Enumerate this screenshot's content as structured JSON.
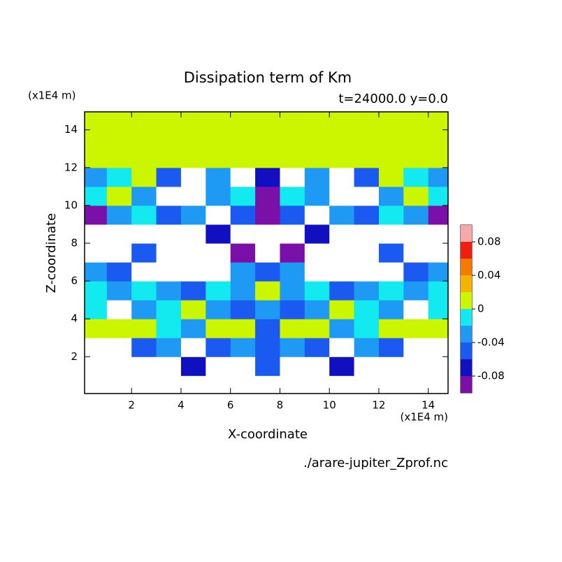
{
  "chart_data": {
    "type": "contour",
    "title": "Dissipation term of Km",
    "subtitle": "t=24000.0 y=0.0",
    "x_label": "X-coordinate",
    "y_label": "Z-coordinate",
    "x_unit": "(x1E4 m)",
    "y_unit": "(x1E4 m)",
    "file": "./arare-jupiter_Zprof.nc",
    "xlim": [
      0.1,
      14.8
    ],
    "ylim": [
      0.05,
      14.95
    ],
    "xticks": [
      2,
      4,
      6,
      8,
      10,
      12,
      14
    ],
    "yticks": [
      2,
      4,
      6,
      8,
      10,
      12,
      14
    ],
    "x": [
      0.5,
      1.5,
      2.5,
      3.5,
      4.5,
      5.5,
      6.5,
      7.5,
      8.5,
      9.5,
      10.5,
      11.5,
      12.5,
      13.5,
      14.5
    ],
    "z": [
      0.5,
      1.5,
      2.5,
      3.5,
      4.5,
      5.5,
      6.5,
      7.5,
      8.5,
      9.5,
      10.5,
      11.5,
      12.5,
      13.5,
      14.5
    ],
    "values": [
      [
        -0.12,
        -0.12,
        -0.12,
        -0.12,
        -0.12,
        -0.12,
        -0.12,
        -0.12,
        -0.12,
        -0.12,
        -0.12,
        -0.12,
        -0.12,
        -0.12,
        -0.12
      ],
      [
        -0.12,
        -0.12,
        -0.12,
        -0.12,
        -0.07,
        -0.12,
        -0.12,
        -0.05,
        -0.12,
        -0.12,
        -0.07,
        -0.12,
        -0.12,
        -0.12,
        -0.12
      ],
      [
        -0.12,
        -0.12,
        -0.05,
        -0.03,
        -0.12,
        -0.05,
        -0.03,
        -0.05,
        -0.03,
        -0.05,
        -0.12,
        -0.03,
        -0.05,
        -0.12,
        -0.12
      ],
      [
        0.01,
        0.01,
        0.01,
        -0.01,
        -0.03,
        0.01,
        0.01,
        -0.05,
        0.01,
        0.01,
        -0.03,
        -0.01,
        0.01,
        0.01,
        0.01
      ],
      [
        -0.01,
        -0.12,
        -0.03,
        -0.01,
        0.01,
        -0.03,
        -0.05,
        -0.03,
        -0.05,
        -0.03,
        0.01,
        -0.01,
        -0.03,
        -0.12,
        -0.01
      ],
      [
        -0.01,
        -0.03,
        -0.01,
        -0.03,
        -0.05,
        -0.01,
        -0.03,
        0.01,
        -0.03,
        -0.01,
        -0.05,
        -0.03,
        -0.01,
        -0.03,
        -0.01
      ],
      [
        -0.03,
        -0.05,
        -0.12,
        -0.12,
        -0.12,
        -0.12,
        -0.03,
        -0.05,
        -0.03,
        -0.12,
        -0.12,
        -0.12,
        -0.12,
        -0.05,
        -0.03
      ],
      [
        -0.12,
        -0.12,
        -0.05,
        -0.12,
        -0.12,
        -0.12,
        -0.09,
        -0.12,
        -0.09,
        -0.12,
        -0.12,
        -0.12,
        -0.05,
        -0.12,
        -0.12
      ],
      [
        -0.12,
        -0.12,
        -0.12,
        -0.12,
        -0.12,
        -0.07,
        -0.12,
        -0.12,
        -0.12,
        -0.07,
        -0.12,
        -0.12,
        -0.12,
        -0.12,
        -0.12
      ],
      [
        -0.09,
        -0.03,
        -0.01,
        -0.05,
        -0.03,
        -0.12,
        -0.05,
        -0.09,
        -0.05,
        -0.12,
        -0.03,
        -0.05,
        -0.01,
        -0.03,
        -0.09
      ],
      [
        -0.01,
        0.01,
        -0.03,
        -0.12,
        -0.12,
        -0.03,
        -0.01,
        -0.09,
        -0.01,
        -0.03,
        -0.12,
        -0.12,
        -0.03,
        0.01,
        -0.01
      ],
      [
        -0.03,
        -0.01,
        0.01,
        -0.05,
        -0.12,
        -0.03,
        -0.12,
        -0.07,
        -0.12,
        -0.03,
        -0.12,
        -0.05,
        0.01,
        -0.01,
        -0.03
      ],
      [
        0.01,
        0.01,
        0.01,
        0.01,
        0.01,
        0.01,
        0.01,
        0.01,
        0.01,
        0.01,
        0.01,
        0.01,
        0.01,
        0.01,
        0.01
      ],
      [
        0.01,
        0.01,
        0.01,
        0.01,
        0.01,
        0.01,
        0.01,
        0.01,
        0.01,
        0.01,
        0.01,
        0.01,
        0.01,
        0.01,
        0.01
      ],
      [
        0.01,
        0.01,
        0.01,
        0.01,
        0.01,
        0.01,
        0.01,
        0.01,
        0.01,
        0.01,
        0.01,
        0.01,
        0.01,
        0.01,
        0.01
      ]
    ],
    "levels": [
      -0.1,
      -0.08,
      -0.06,
      -0.04,
      -0.02,
      0,
      0.02,
      0.04,
      0.06,
      0.08,
      0.1
    ],
    "colors": [
      "#7a10a8",
      "#1010c0",
      "#1a5af0",
      "#1e9af5",
      "#12eaf0",
      "#ccf500",
      "#f5b400",
      "#f57a00",
      "#f01e10",
      "#f7a8a8"
    ],
    "cbar_ticks": [
      -0.08,
      -0.04,
      0,
      0.04,
      0.08
    ]
  }
}
